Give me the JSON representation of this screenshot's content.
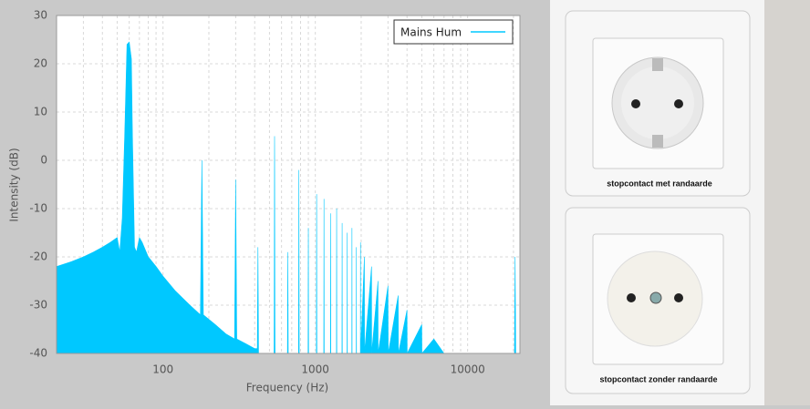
{
  "chart_data": {
    "type": "area",
    "x": [
      20,
      25,
      30,
      35,
      40,
      45,
      50,
      52,
      54,
      56,
      58,
      60,
      62,
      63,
      65,
      67,
      70,
      73,
      80,
      90,
      100,
      120,
      150,
      176,
      180,
      184,
      220,
      260,
      295,
      300,
      305,
      350,
      400,
      416,
      420,
      424,
      536,
      540,
      544,
      656,
      660,
      664,
      776,
      780,
      784,
      896,
      900,
      904,
      1016,
      1020,
      1024,
      1136,
      1140,
      1144,
      1256,
      1260,
      1264,
      1376,
      1380,
      1384,
      1496,
      1500,
      1504,
      1616,
      1620,
      1624,
      1736,
      1740,
      1744,
      1856,
      1860,
      1864,
      1976,
      1980,
      1984,
      2100,
      2104,
      2340,
      2344,
      2580,
      2584,
      3000,
      3010,
      3500,
      3510,
      4000,
      4010,
      5000,
      5010,
      6000,
      7000,
      20300,
      20500,
      20700,
      22050
    ],
    "series": [
      {
        "name": "Mains Hum",
        "color": "#00c8ff",
        "values": [
          -22,
          -21,
          -20,
          -19,
          -18,
          -17,
          -16,
          -19,
          -12,
          5,
          24,
          24.5,
          21,
          5,
          -18,
          -19,
          -16,
          -17,
          -20,
          -22,
          -24,
          -27,
          -30,
          -32,
          0,
          -32,
          -34,
          -36,
          -37,
          -4,
          -37,
          -38,
          -39,
          -39,
          -18,
          -40,
          -40,
          5,
          -40,
          -40,
          -19,
          -40,
          -40,
          -2,
          -40,
          -40,
          -14,
          -40,
          -40,
          -7,
          -40,
          -40,
          -8,
          -40,
          -40,
          -11,
          -40,
          -40,
          -10,
          -40,
          -40,
          -13,
          -40,
          -40,
          -15,
          -40,
          -40,
          -14,
          -40,
          -40,
          -18,
          -40,
          -40,
          -17,
          -40,
          -20,
          -40,
          -22,
          -40,
          -25,
          -40,
          -26,
          -40,
          -28,
          -40,
          -31,
          -40,
          -34,
          -40,
          -37,
          -40,
          -40,
          -20,
          -40,
          -40
        ]
      }
    ],
    "xlabel": "Frequency (Hz)",
    "ylabel": "Intensity (dB)",
    "xscale": "log",
    "xlim": [
      20,
      22050
    ],
    "xticks": [
      100,
      1000,
      10000
    ],
    "xminorticks": [
      20,
      30,
      40,
      50,
      60,
      70,
      80,
      90,
      200,
      300,
      400,
      500,
      600,
      700,
      800,
      900,
      2000,
      3000,
      4000,
      5000,
      6000,
      7000,
      8000,
      9000,
      20000
    ],
    "ylim": [
      -40,
      30
    ],
    "yticks": [
      -40,
      -30,
      -20,
      -10,
      0,
      10,
      20,
      30
    ],
    "grid": true,
    "legend": "upper right"
  },
  "photos": [
    {
      "caption": "stopcontact met randaarde"
    },
    {
      "caption": "stopcontact zonder randaarde"
    }
  ]
}
